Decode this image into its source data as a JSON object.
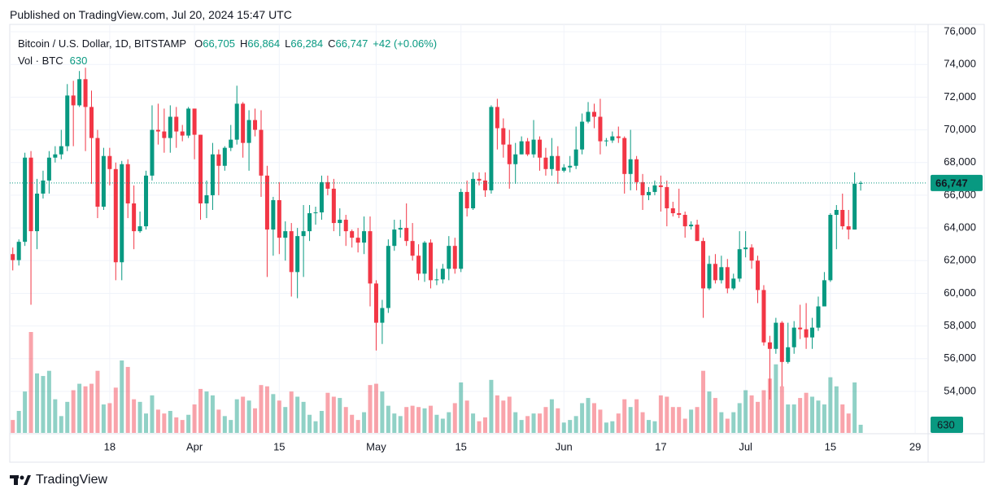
{
  "header": {
    "published": "Published on TradingView.com, Jul 20, 2024 15:47 UTC"
  },
  "footer": {
    "brand": "TradingView"
  },
  "chart_data": {
    "type": "candlestick",
    "title": "Bitcoin / U.S. Dollar, 1D, BITSTAMP",
    "ohlc_letters": [
      "O",
      "H",
      "L",
      "C"
    ],
    "last_labels": [
      "66,705",
      "66,864",
      "66,284",
      "66,747"
    ],
    "change": "+42 (+0.06%)",
    "volume_title": "Vol · BTC",
    "up_color": "#089981",
    "down_color": "#f23645",
    "grid": true,
    "xlim": [
      -0.5,
      151
    ],
    "xticks": [
      {
        "value": 16,
        "label": "18"
      },
      {
        "value": 30,
        "label": "Apr"
      },
      {
        "value": 44,
        "label": "15"
      },
      {
        "value": 60,
        "label": "May"
      },
      {
        "value": 74,
        "label": "15"
      },
      {
        "value": 91,
        "label": "Jun"
      },
      {
        "value": 107,
        "label": "17"
      },
      {
        "value": 121,
        "label": "Jul"
      },
      {
        "value": 135,
        "label": "15"
      },
      {
        "value": 149,
        "label": "29"
      }
    ],
    "ylim": [
      51460,
      76450
    ],
    "yticks": [
      {
        "value": 54000,
        "label": "54,000"
      },
      {
        "value": 56000,
        "label": "56,000"
      },
      {
        "value": 58000,
        "label": "58,000"
      },
      {
        "value": 60000,
        "label": "60,000"
      },
      {
        "value": 62000,
        "label": "62,000"
      },
      {
        "value": 64000,
        "label": "64,000"
      },
      {
        "value": 66000,
        "label": "66,000"
      },
      {
        "value": 68000,
        "label": "68,000"
      },
      {
        "value": 70000,
        "label": "70,000"
      },
      {
        "value": 72000,
        "label": "72,000"
      },
      {
        "value": 74000,
        "label": "74,000"
      },
      {
        "value": 76000,
        "label": "76,000"
      }
    ],
    "open": [
      62400,
      62030,
      63150,
      68300,
      63800,
      66100,
      66900,
      68300,
      68500,
      69000,
      72100,
      71500,
      73100,
      71400,
      69500,
      65300,
      68400,
      67600,
      61900,
      67900,
      65500,
      63800,
      64100,
      67200,
      70000,
      69900,
      69500,
      70800,
      69900,
      69650,
      71300,
      69700,
      65500,
      66000,
      68500,
      67800,
      68900,
      69400,
      71600,
      69200,
      70600,
      70000,
      67200,
      63900,
      65700,
      63400,
      63800,
      61300,
      63500,
      63800,
      64900,
      64950,
      66800,
      66400,
      64300,
      64500,
      63800,
      63400,
      63100,
      63800,
      60600,
      58200,
      59100,
      62900,
      63900,
      64000,
      63200,
      62300,
      61200,
      63100,
      60800,
      60850,
      61500,
      62900,
      61500,
      66200,
      65200,
      67000,
      66900,
      66300,
      71400,
      70100,
      69100,
      67900,
      68500,
      69300,
      68500,
      69400,
      68300,
      67600,
      68400,
      67500,
      67700,
      67800,
      68800,
      70500,
      71100,
      70800,
      69300,
      69350,
      69600,
      69500,
      67300,
      68200,
      66800,
      66000,
      66200,
      66600,
      66500,
      65200,
      64900,
      64800,
      64100,
      64200,
      63200,
      60300,
      61800,
      60800,
      61600,
      60300,
      60900,
      62700,
      62800,
      62000,
      60200,
      57000,
      56600,
      58200,
      55800,
      56700,
      57900,
      57800,
      57300,
      57900,
      59200,
      60800,
      64800,
      65100,
      64100,
      63900,
      66705
    ],
    "high": [
      62800,
      63300,
      68600,
      68700,
      67000,
      67500,
      68700,
      69000,
      70000,
      72800,
      73000,
      73600,
      73800,
      72400,
      70000,
      68900,
      68900,
      68000,
      68100,
      68200,
      66600,
      65000,
      67500,
      71500,
      71600,
      71300,
      71500,
      71400,
      70300,
      71400,
      71300,
      69700,
      66900,
      69200,
      68800,
      69000,
      70300,
      72700,
      71700,
      71200,
      71300,
      71200,
      67800,
      65900,
      66800,
      64400,
      64300,
      64000,
      65400,
      65400,
      65300,
      67200,
      67200,
      67000,
      65200,
      64800,
      63900,
      64000,
      64700,
      64700,
      60800,
      59600,
      63300,
      64500,
      64500,
      65500,
      64300,
      63000,
      63200,
      63300,
      61500,
      61800,
      63500,
      63400,
      66400,
      66900,
      67400,
      67400,
      67400,
      71500,
      71900,
      70700,
      70000,
      69200,
      69600,
      69500,
      70600,
      69600,
      68900,
      69500,
      69000,
      67900,
      68400,
      70200,
      71000,
      71700,
      71600,
      71900,
      69500,
      69900,
      70200,
      69600,
      70000,
      68400,
      67300,
      66500,
      66900,
      67200,
      66900,
      65600,
      66400,
      65000,
      64400,
      64500,
      63400,
      62300,
      62400,
      62300,
      62100,
      61200,
      63800,
      63800,
      63000,
      62300,
      60500,
      57400,
      58500,
      58300,
      58200,
      58300,
      59300,
      59400,
      58500,
      59800,
      61300,
      64900,
      65400,
      66100,
      65100,
      67400,
      66864
    ],
    "low": [
      61400,
      61700,
      62900,
      59300,
      62700,
      65800,
      66100,
      68000,
      68200,
      68700,
      69000,
      71400,
      68700,
      66700,
      64600,
      65100,
      66600,
      60800,
      60800,
      64600,
      62700,
      63700,
      63900,
      66900,
      69100,
      68600,
      68600,
      68900,
      69300,
      69500,
      68200,
      64500,
      64600,
      65100,
      66000,
      67500,
      68700,
      69100,
      68300,
      67500,
      69600,
      65900,
      61000,
      62300,
      62400,
      62000,
      59800,
      59700,
      61000,
      63200,
      64200,
      64500,
      66000,
      63800,
      63500,
      62900,
      62800,
      62500,
      62400,
      59200,
      56500,
      56900,
      58800,
      62600,
      63400,
      62900,
      62000,
      60800,
      60700,
      60300,
      60500,
      60600,
      60800,
      61200,
      61300,
      64700,
      65100,
      66600,
      65900,
      66100,
      68800,
      68300,
      66400,
      66700,
      68500,
      68400,
      68300,
      67500,
      67200,
      67200,
      66700,
      67400,
      67400,
      67600,
      68500,
      70400,
      70100,
      68500,
      69000,
      69200,
      69200,
      66100,
      66300,
      66300,
      65100,
      65700,
      66000,
      65000,
      64100,
      64700,
      64600,
      63400,
      63900,
      63200,
      58500,
      60200,
      60600,
      60600,
      60000,
      60200,
      60700,
      62200,
      61500,
      59400,
      56800,
      53500,
      56300,
      54300,
      55700,
      56300,
      57200,
      56600,
      56600,
      57700,
      59200,
      60700,
      62700,
      63900,
      63300,
      63900,
      66284
    ],
    "close": [
      62030,
      63150,
      68300,
      63800,
      66100,
      66900,
      68300,
      68500,
      69000,
      72100,
      71500,
      73100,
      71400,
      69500,
      65300,
      68400,
      67600,
      61900,
      67900,
      65500,
      63800,
      64100,
      67200,
      70000,
      69900,
      69500,
      70800,
      69900,
      69650,
      71300,
      69700,
      65500,
      66000,
      68500,
      67800,
      68900,
      69400,
      71600,
      69200,
      70600,
      70000,
      67200,
      63900,
      65700,
      63400,
      63800,
      61300,
      63500,
      63800,
      64900,
      64950,
      66800,
      66400,
      64300,
      64500,
      63800,
      63400,
      63100,
      63800,
      60600,
      58200,
      59100,
      62900,
      63900,
      64000,
      63200,
      62300,
      61200,
      63100,
      60800,
      60850,
      61500,
      62900,
      61500,
      66200,
      65200,
      67000,
      66900,
      66300,
      71400,
      70100,
      69100,
      67900,
      68500,
      69300,
      68500,
      69400,
      68300,
      67600,
      68400,
      67500,
      67700,
      67800,
      68800,
      70500,
      71100,
      70800,
      69300,
      69350,
      69600,
      69500,
      67300,
      68200,
      66800,
      66000,
      66200,
      66600,
      66500,
      65200,
      64900,
      64800,
      64100,
      64200,
      63200,
      60300,
      61800,
      60800,
      61600,
      60300,
      60900,
      62700,
      62800,
      62000,
      60200,
      57000,
      56600,
      58200,
      55800,
      56700,
      57900,
      57800,
      57300,
      57900,
      59200,
      60800,
      64800,
      65100,
      64100,
      63900,
      66705,
      66747
    ],
    "volume": [
      1000,
      1700,
      3200,
      7800,
      4600,
      4400,
      4800,
      2600,
      1300,
      2400,
      3300,
      3800,
      3600,
      3800,
      4800,
      2200,
      2300,
      3500,
      5600,
      5100,
      2600,
      2400,
      1500,
      2900,
      1800,
      1500,
      1700,
      1200,
      1000,
      1400,
      2200,
      3400,
      3200,
      2900,
      1800,
      1300,
      1000,
      2600,
      2800,
      2500,
      1900,
      3700,
      3600,
      3000,
      2500,
      2000,
      3200,
      2800,
      2400,
      1400,
      900,
      1700,
      3100,
      2800,
      2700,
      2000,
      1400,
      1000,
      1600,
      3700,
      3800,
      3200,
      2100,
      1500,
      1300,
      2000,
      2100,
      2000,
      1900,
      2100,
      1400,
      1100,
      1600,
      2300,
      3900,
      2500,
      1500,
      900,
      1200,
      4100,
      2900,
      2500,
      2800,
      1600,
      1000,
      1300,
      1500,
      1500,
      2000,
      2600,
      1900,
      800,
      1000,
      1300,
      2300,
      2700,
      2300,
      1800,
      800,
      900,
      1500,
      2600,
      2000,
      2600,
      1600,
      1000,
      900,
      2900,
      2800,
      2000,
      2000,
      1100,
      1800,
      2000,
      4800,
      3200,
      2700,
      1600,
      1100,
      1600,
      2300,
      3300,
      2900,
      2400,
      3300,
      4200,
      5300,
      3600,
      2200,
      2200,
      2700,
      3100,
      2800,
      2500,
      2200,
      4300,
      3600,
      2200,
      1500,
      3900,
      630
    ]
  }
}
